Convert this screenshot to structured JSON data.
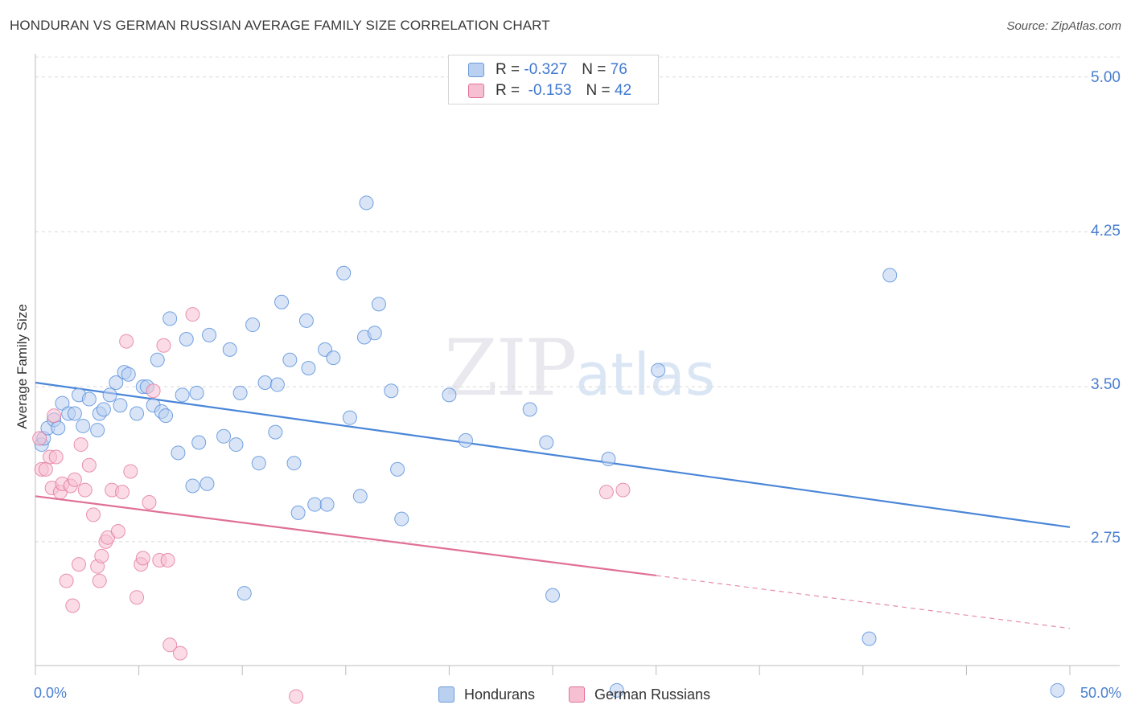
{
  "chart_data": {
    "type": "scatter",
    "title": "HONDURAN VS GERMAN RUSSIAN AVERAGE FAMILY SIZE CORRELATION CHART",
    "source": "Source: ZipAtlas.com",
    "xlabel": "",
    "ylabel": "Average Family Size",
    "xlim": [
      0,
      50
    ],
    "ylim": [
      2.15,
      5.1
    ],
    "x_tick_labels": [
      "0.0%",
      "50.0%"
    ],
    "y_ticks": [
      2.75,
      3.5,
      4.25,
      5.0
    ],
    "y_tick_labels": [
      "2.75",
      "3.50",
      "4.25",
      "5.00"
    ],
    "grid": true,
    "legend_position": "bottom-center",
    "watermark": {
      "zip": "ZIP",
      "atlas": "atlas"
    },
    "stats": [
      {
        "r_label": "R =",
        "r_value": "-0.327",
        "n_label": "N =",
        "n_value": "76"
      },
      {
        "r_label": "R =",
        "r_value": "-0.153",
        "n_label": "N =",
        "n_value": "42"
      }
    ],
    "series": [
      {
        "name": "Hondurans",
        "color": "#4a86d8",
        "fill": "#b9d0f0",
        "trend": {
          "x": [
            0,
            50
          ],
          "y": [
            3.52,
            2.82
          ],
          "solid_until": 50
        },
        "points": [
          [
            0.3,
            3.22
          ],
          [
            0.4,
            3.25
          ],
          [
            0.6,
            3.3
          ],
          [
            0.9,
            3.34
          ],
          [
            1.1,
            3.3
          ],
          [
            1.3,
            3.42
          ],
          [
            1.6,
            3.37
          ],
          [
            1.9,
            3.37
          ],
          [
            2.1,
            3.46
          ],
          [
            2.3,
            3.31
          ],
          [
            2.6,
            3.44
          ],
          [
            3.0,
            3.29
          ],
          [
            3.1,
            3.37
          ],
          [
            3.3,
            3.39
          ],
          [
            3.6,
            3.46
          ],
          [
            3.9,
            3.52
          ],
          [
            4.1,
            3.41
          ],
          [
            4.3,
            3.57
          ],
          [
            4.5,
            3.56
          ],
          [
            4.9,
            3.37
          ],
          [
            5.2,
            3.5
          ],
          [
            5.7,
            3.41
          ],
          [
            5.9,
            3.63
          ],
          [
            5.4,
            3.5
          ],
          [
            6.1,
            3.38
          ],
          [
            6.3,
            3.36
          ],
          [
            6.5,
            3.83
          ],
          [
            6.9,
            3.18
          ],
          [
            7.1,
            3.46
          ],
          [
            7.3,
            3.73
          ],
          [
            7.6,
            3.02
          ],
          [
            7.8,
            3.47
          ],
          [
            7.9,
            3.23
          ],
          [
            8.3,
            3.03
          ],
          [
            8.4,
            3.75
          ],
          [
            9.1,
            3.26
          ],
          [
            9.4,
            3.68
          ],
          [
            9.7,
            3.22
          ],
          [
            9.9,
            3.47
          ],
          [
            10.1,
            2.5
          ],
          [
            10.5,
            3.8
          ],
          [
            10.8,
            3.13
          ],
          [
            11.1,
            3.52
          ],
          [
            11.6,
            3.28
          ],
          [
            11.7,
            3.51
          ],
          [
            11.9,
            3.91
          ],
          [
            12.3,
            3.63
          ],
          [
            12.5,
            3.13
          ],
          [
            12.7,
            2.89
          ],
          [
            13.1,
            3.82
          ],
          [
            13.2,
            3.59
          ],
          [
            13.5,
            2.93
          ],
          [
            14.0,
            3.68
          ],
          [
            14.1,
            2.93
          ],
          [
            14.4,
            3.64
          ],
          [
            14.9,
            4.05
          ],
          [
            15.2,
            3.35
          ],
          [
            15.7,
            2.97
          ],
          [
            15.9,
            3.74
          ],
          [
            16.0,
            4.39
          ],
          [
            16.4,
            3.76
          ],
          [
            16.6,
            3.9
          ],
          [
            17.2,
            3.48
          ],
          [
            17.5,
            3.1
          ],
          [
            17.7,
            2.86
          ],
          [
            20.0,
            3.46
          ],
          [
            20.8,
            3.24
          ],
          [
            23.9,
            3.39
          ],
          [
            24.7,
            3.23
          ],
          [
            25.0,
            2.49
          ],
          [
            27.7,
            3.15
          ],
          [
            28.1,
            2.03
          ],
          [
            30.1,
            3.58
          ],
          [
            40.3,
            2.28
          ],
          [
            41.3,
            4.04
          ],
          [
            49.4,
            2.03
          ]
        ]
      },
      {
        "name": "German Russians",
        "color": "#e07098",
        "fill": "#f7c0d2",
        "trend": {
          "x": [
            0,
            50
          ],
          "y": [
            2.97,
            2.33
          ],
          "solid_until": 30
        },
        "points": [
          [
            0.2,
            3.25
          ],
          [
            0.3,
            3.1
          ],
          [
            0.5,
            3.1
          ],
          [
            0.7,
            3.16
          ],
          [
            0.8,
            3.01
          ],
          [
            0.9,
            3.36
          ],
          [
            1.0,
            3.16
          ],
          [
            1.2,
            2.99
          ],
          [
            1.3,
            3.03
          ],
          [
            1.5,
            2.56
          ],
          [
            1.7,
            3.02
          ],
          [
            1.8,
            2.44
          ],
          [
            1.9,
            3.05
          ],
          [
            2.1,
            2.64
          ],
          [
            2.2,
            3.22
          ],
          [
            2.4,
            3.0
          ],
          [
            2.6,
            3.12
          ],
          [
            2.8,
            2.88
          ],
          [
            3.0,
            2.63
          ],
          [
            3.1,
            2.56
          ],
          [
            3.2,
            2.68
          ],
          [
            3.4,
            2.75
          ],
          [
            3.5,
            2.77
          ],
          [
            3.7,
            3.0
          ],
          [
            4.0,
            2.8
          ],
          [
            4.2,
            2.99
          ],
          [
            4.4,
            3.72
          ],
          [
            4.6,
            3.09
          ],
          [
            4.9,
            2.48
          ],
          [
            5.1,
            2.64
          ],
          [
            5.2,
            2.67
          ],
          [
            5.5,
            2.94
          ],
          [
            5.7,
            3.48
          ],
          [
            6.0,
            2.66
          ],
          [
            6.2,
            3.7
          ],
          [
            6.4,
            2.66
          ],
          [
            6.5,
            2.25
          ],
          [
            7.0,
            2.21
          ],
          [
            7.6,
            3.85
          ],
          [
            12.6,
            2.0
          ],
          [
            27.6,
            2.99
          ],
          [
            28.4,
            3.0
          ]
        ]
      }
    ]
  }
}
